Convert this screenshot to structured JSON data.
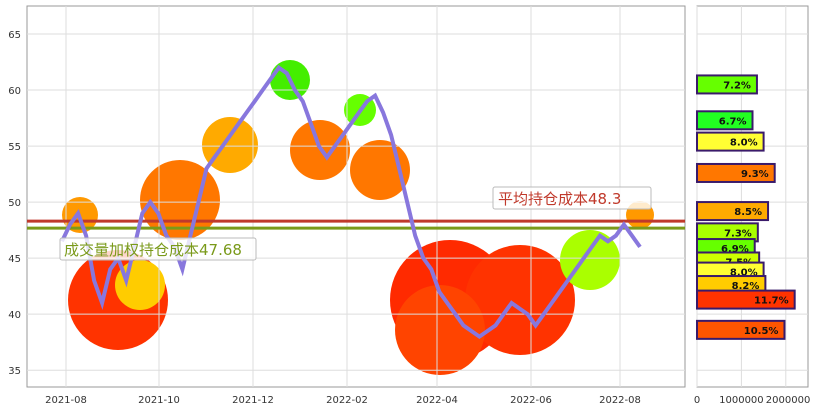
{
  "chart_data": [
    {
      "type": "line",
      "x_ticks": [
        "2021-08",
        "2021-10",
        "2021-12",
        "2022-02",
        "2022-04",
        "2022-06",
        "2022-08"
      ],
      "y_ticks": [
        35,
        40,
        45,
        50,
        55,
        60,
        65
      ],
      "ylim": [
        33.5,
        67.5
      ],
      "grid": true,
      "series": [
        {
          "values": [
            46.5,
            48,
            49,
            47,
            43,
            41,
            44,
            45,
            43,
            46,
            49,
            50,
            49,
            47,
            46,
            44,
            47,
            50,
            53,
            54,
            55,
            56,
            57,
            58,
            59,
            60,
            61,
            62,
            61.5,
            60,
            59,
            57,
            55,
            54,
            55,
            56,
            57,
            58,
            59,
            59.5,
            58,
            56,
            53,
            50,
            47,
            45,
            44,
            42,
            41,
            40,
            39,
            38.5,
            38,
            38.5,
            39,
            40,
            41,
            40.5,
            40,
            39,
            40,
            41,
            42,
            43,
            44,
            45,
            46,
            47,
            46.5,
            47,
            48,
            47,
            46
          ]
        }
      ],
      "reference_lines": [
        {
          "label": "平均持仓成本48.3",
          "value": 48.3,
          "color": "#c0392b"
        },
        {
          "label": "成交量加权持仓成本47.68",
          "value": 47.68,
          "color": "#7a9a1a"
        }
      ]
    },
    {
      "type": "bar",
      "orientation": "horizontal",
      "x_ticks": [
        "0",
        "1000000",
        "2000000"
      ],
      "xlim": [
        0,
        2500000
      ],
      "bars": [
        {
          "price": 60.5,
          "label": "7.2%",
          "value": 1350000,
          "color": "#66ff00"
        },
        {
          "price": 57.3,
          "label": "6.7%",
          "value": 1250000,
          "color": "#22ff22"
        },
        {
          "price": 55.4,
          "label": "8.0%",
          "value": 1500000,
          "color": "#ffff33"
        },
        {
          "price": 52.6,
          "label": "9.3%",
          "value": 1750000,
          "color": "#ff7700"
        },
        {
          "price": 49.2,
          "label": "8.5%",
          "value": 1600000,
          "color": "#ffaa00"
        },
        {
          "price": 47.3,
          "label": "7.3%",
          "value": 1370000,
          "color": "#aaff00"
        },
        {
          "price": 45.9,
          "label": "6.9%",
          "value": 1300000,
          "color": "#66ff00"
        },
        {
          "price": 44.7,
          "label": "7.5%",
          "value": 1400000,
          "color": "#ccff00"
        },
        {
          "price": 43.8,
          "label": "8.0%",
          "value": 1500000,
          "color": "#ffff33"
        },
        {
          "price": 42.6,
          "label": "8.2%",
          "value": 1540000,
          "color": "#ffcc00"
        },
        {
          "price": 41.3,
          "label": "11.7%",
          "value": 2200000,
          "color": "#ff3300"
        },
        {
          "price": 38.6,
          "label": "10.5%",
          "value": 1970000,
          "color": "#ff5500"
        }
      ]
    }
  ],
  "colors": {
    "line": "#8877dd",
    "grid": "#dddddd",
    "frame": "#999999"
  }
}
